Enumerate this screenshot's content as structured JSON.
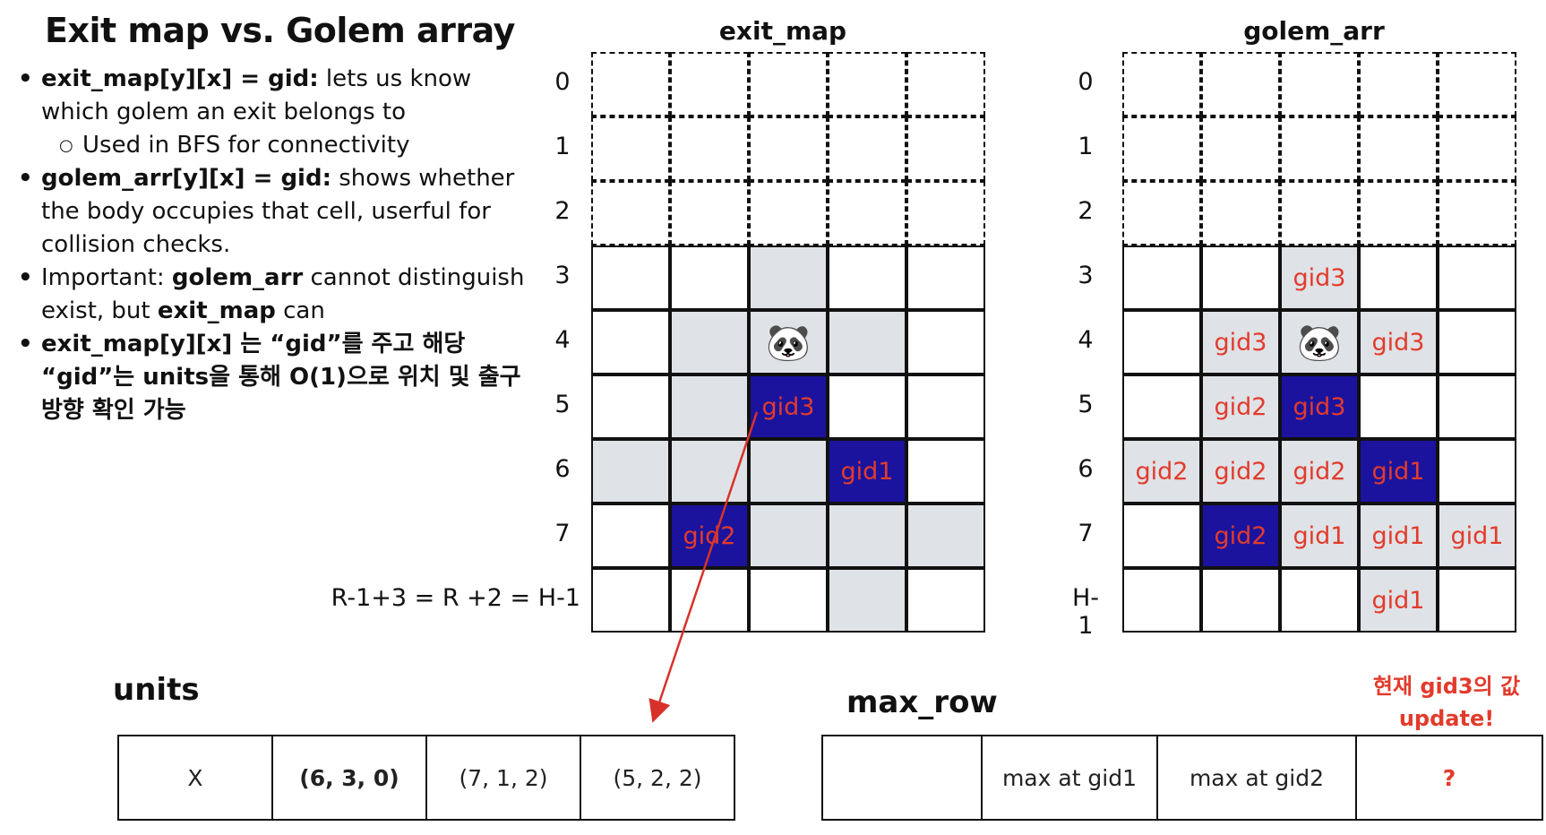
{
  "title": "Exit map vs. Golem array",
  "bullets": [
    {
      "type": "bullet",
      "bold": "exit_map[y][x] = gid:",
      "text": " lets us know which golem an exit belongs to"
    },
    {
      "type": "sub",
      "bold": "",
      "text": "Used in BFS for connectivity"
    },
    {
      "type": "bullet",
      "bold": "golem_arr[y][x] = gid:",
      "text": " shows whether the body occupies that cell, userful for collision checks."
    },
    {
      "type": "bullet",
      "bold": "",
      "text": "Important: ",
      "bold2": "golem_arr",
      "text2": " cannot distinguish exist, but ",
      "bold3": "exit_map",
      "text3": " can"
    },
    {
      "type": "bullet",
      "bold": "exit_map[y][x] 는 “gid”를 주고 해당 “gid”는 units을 통해 O(1)으로 위치 및 출구 방향 확인 가능",
      "text": ""
    }
  ],
  "exit_map": {
    "title": "exit_map",
    "row_labels": [
      "0",
      "1",
      "2",
      "3",
      "4",
      "5",
      "6",
      "7",
      "R-1+3 = R +2 = H-1"
    ],
    "rows": [
      [
        {
          "t": "",
          "s": "d"
        },
        {
          "t": "",
          "s": "d"
        },
        {
          "t": "",
          "s": "d"
        },
        {
          "t": "",
          "s": "d"
        },
        {
          "t": "",
          "s": "d"
        }
      ],
      [
        {
          "t": "",
          "s": "d"
        },
        {
          "t": "",
          "s": "d"
        },
        {
          "t": "",
          "s": "d"
        },
        {
          "t": "",
          "s": "d"
        },
        {
          "t": "",
          "s": "d"
        }
      ],
      [
        {
          "t": "",
          "s": "d"
        },
        {
          "t": "",
          "s": "d"
        },
        {
          "t": "",
          "s": "d"
        },
        {
          "t": "",
          "s": "d"
        },
        {
          "t": "",
          "s": "d"
        }
      ],
      [
        {
          "t": "",
          "s": "w"
        },
        {
          "t": "",
          "s": "w"
        },
        {
          "t": "",
          "s": "g"
        },
        {
          "t": "",
          "s": "w"
        },
        {
          "t": "",
          "s": "w"
        }
      ],
      [
        {
          "t": "",
          "s": "w"
        },
        {
          "t": "",
          "s": "g"
        },
        {
          "t": "",
          "s": "p"
        },
        {
          "t": "",
          "s": "g"
        },
        {
          "t": "",
          "s": "w"
        }
      ],
      [
        {
          "t": "",
          "s": "w"
        },
        {
          "t": "",
          "s": "g"
        },
        {
          "t": "gid3",
          "s": "b"
        },
        {
          "t": "",
          "s": "w"
        },
        {
          "t": "",
          "s": "w"
        }
      ],
      [
        {
          "t": "",
          "s": "g"
        },
        {
          "t": "",
          "s": "g"
        },
        {
          "t": "",
          "s": "g"
        },
        {
          "t": "gid1",
          "s": "b"
        },
        {
          "t": "",
          "s": "w"
        }
      ],
      [
        {
          "t": "",
          "s": "w"
        },
        {
          "t": "gid2",
          "s": "b"
        },
        {
          "t": "",
          "s": "g"
        },
        {
          "t": "",
          "s": "g"
        },
        {
          "t": "",
          "s": "g"
        }
      ],
      [
        {
          "t": "",
          "s": "w"
        },
        {
          "t": "",
          "s": "w"
        },
        {
          "t": "",
          "s": "w"
        },
        {
          "t": "",
          "s": "g"
        },
        {
          "t": "",
          "s": "w"
        }
      ]
    ]
  },
  "golem_arr": {
    "title": "golem_arr",
    "row_labels": [
      "0",
      "1",
      "2",
      "3",
      "4",
      "5",
      "6",
      "7",
      "H-1"
    ],
    "rows": [
      [
        {
          "t": "",
          "s": "d"
        },
        {
          "t": "",
          "s": "d"
        },
        {
          "t": "",
          "s": "d"
        },
        {
          "t": "",
          "s": "d"
        },
        {
          "t": "",
          "s": "d"
        }
      ],
      [
        {
          "t": "",
          "s": "d"
        },
        {
          "t": "",
          "s": "d"
        },
        {
          "t": "",
          "s": "d"
        },
        {
          "t": "",
          "s": "d"
        },
        {
          "t": "",
          "s": "d"
        }
      ],
      [
        {
          "t": "",
          "s": "d"
        },
        {
          "t": "",
          "s": "d"
        },
        {
          "t": "",
          "s": "d"
        },
        {
          "t": "",
          "s": "d"
        },
        {
          "t": "",
          "s": "d"
        }
      ],
      [
        {
          "t": "",
          "s": "w"
        },
        {
          "t": "",
          "s": "w"
        },
        {
          "t": "gid3",
          "s": "g"
        },
        {
          "t": "",
          "s": "w"
        },
        {
          "t": "",
          "s": "w"
        }
      ],
      [
        {
          "t": "",
          "s": "w"
        },
        {
          "t": "gid3",
          "s": "g"
        },
        {
          "t": "",
          "s": "p"
        },
        {
          "t": "gid3",
          "s": "g"
        },
        {
          "t": "",
          "s": "w"
        }
      ],
      [
        {
          "t": "",
          "s": "w"
        },
        {
          "t": "gid2",
          "s": "g"
        },
        {
          "t": "gid3",
          "s": "b"
        },
        {
          "t": "",
          "s": "w"
        },
        {
          "t": "",
          "s": "w"
        }
      ],
      [
        {
          "t": "gid2",
          "s": "g"
        },
        {
          "t": "gid2",
          "s": "g"
        },
        {
          "t": "gid2",
          "s": "g"
        },
        {
          "t": "gid1",
          "s": "b"
        },
        {
          "t": "",
          "s": "w"
        }
      ],
      [
        {
          "t": "",
          "s": "w"
        },
        {
          "t": "gid2",
          "s": "b"
        },
        {
          "t": "gid1",
          "s": "g"
        },
        {
          "t": "gid1",
          "s": "g"
        },
        {
          "t": "gid1",
          "s": "g"
        }
      ],
      [
        {
          "t": "",
          "s": "w"
        },
        {
          "t": "",
          "s": "w"
        },
        {
          "t": "",
          "s": "w"
        },
        {
          "t": "gid1",
          "s": "g"
        },
        {
          "t": "",
          "s": "w"
        }
      ]
    ]
  },
  "units": {
    "title": "units",
    "cells": [
      "X",
      "(6, 3, 0)",
      "(7, 1, 2)",
      "(5, 2, 2)"
    ],
    "bold_index": 1
  },
  "max_row": {
    "title": "max_row",
    "cells": [
      "",
      "max at gid1",
      "max at gid2",
      "?"
    ],
    "note_line1": "현재 gid3의 값",
    "note_line2": "update!"
  },
  "panda_icon": "🐼",
  "colors": {
    "blue": "#1b139e",
    "shade": "#dfe2e6",
    "red": "#e23b2c"
  }
}
